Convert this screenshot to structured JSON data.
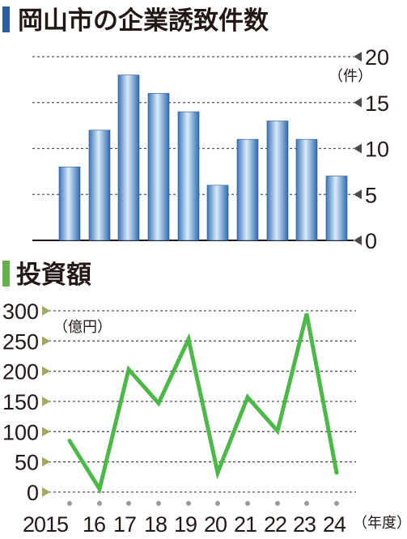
{
  "chart_data": [
    {
      "type": "bar",
      "title": "岡山市の企業誘致件数",
      "unit": "（件）",
      "categories": [
        "2015",
        "16",
        "17",
        "18",
        "19",
        "20",
        "21",
        "22",
        "23",
        "24"
      ],
      "values": [
        8,
        12,
        18,
        16,
        14,
        6,
        11,
        13,
        11,
        7
      ],
      "ylim": [
        0,
        20
      ],
      "yticks": [
        "0",
        "5",
        "10",
        "15",
        "20"
      ],
      "grid": true,
      "colors": {
        "accent": "#2a5fa8",
        "bar_light": "#d9ecfb",
        "bar_dark": "#2f6ab0"
      }
    },
    {
      "type": "line",
      "title": "投資額",
      "unit": "（億円）",
      "categories": [
        "2015",
        "16",
        "17",
        "18",
        "19",
        "20",
        "21",
        "22",
        "23",
        "24"
      ],
      "values": [
        85,
        5,
        203,
        147,
        253,
        32,
        157,
        101,
        295,
        32
      ],
      "ylim": [
        0,
        300
      ],
      "yticks": [
        "0",
        "50",
        "100",
        "150",
        "200",
        "250",
        "300"
      ],
      "x_unit": "（年度）",
      "grid": true,
      "colors": {
        "accent": "#62b14a",
        "line": "#4cb848",
        "tick_marker": "#a3a85a",
        "dot": "#9a9a9a"
      }
    }
  ]
}
